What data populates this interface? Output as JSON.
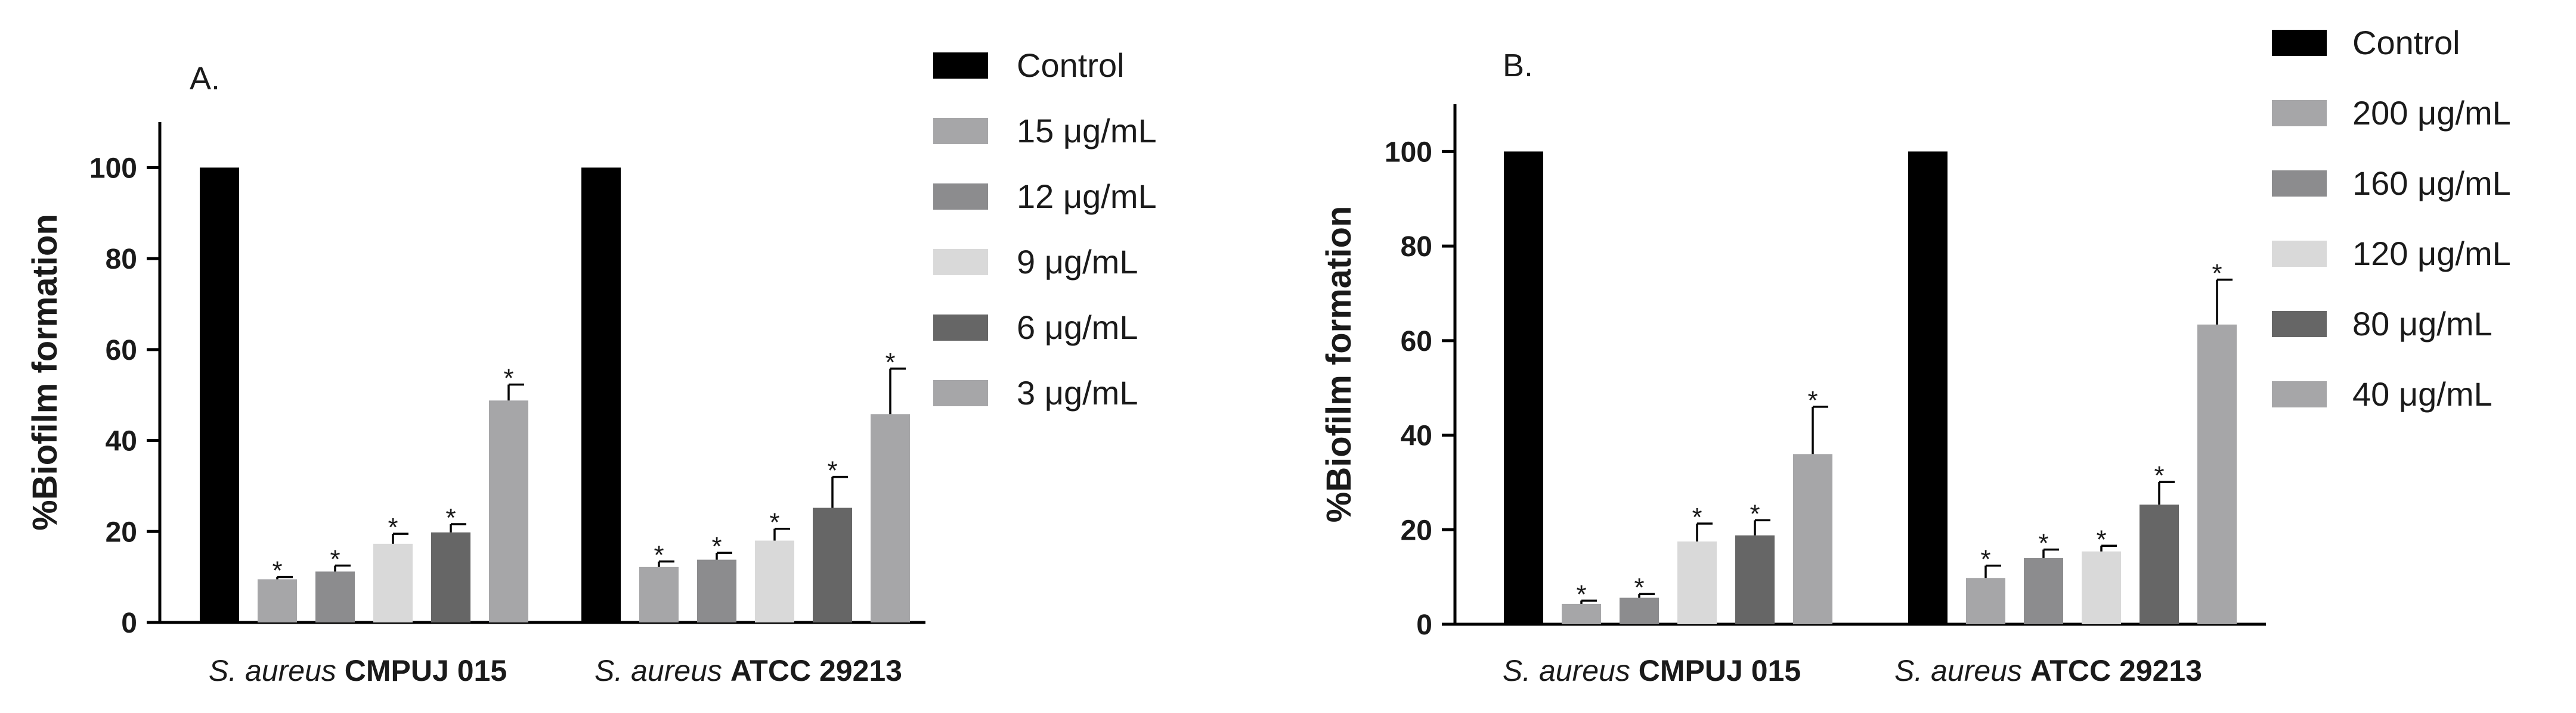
{
  "chart_data": [
    {
      "type": "bar",
      "panel_label": "A.",
      "ylabel": "%Biofilm formation",
      "ylim": [
        0,
        110
      ],
      "yticks": [
        "0",
        "20",
        "40",
        "60",
        "80",
        "100"
      ],
      "groups": [
        {
          "species": "S. aureus",
          "strain": "CMPUJ 015"
        },
        {
          "species": "S. aureus",
          "strain": "ATCC 29213"
        }
      ],
      "significance_marker": "*",
      "legend_position": "right",
      "series": [
        {
          "name": "Control",
          "color": "#000000",
          "values": [
            100,
            100
          ],
          "errors": [
            0,
            0
          ],
          "significant": [
            false,
            false
          ]
        },
        {
          "name": "15 μg/mL",
          "color": "#a6a6a8",
          "values": [
            9.5,
            12.2
          ],
          "errors": [
            0.5,
            1.2
          ],
          "significant": [
            true,
            true
          ]
        },
        {
          "name": "12 μg/mL",
          "color": "#8c8c8e",
          "values": [
            11.2,
            13.8
          ],
          "errors": [
            1.3,
            1.5
          ],
          "significant": [
            true,
            true
          ]
        },
        {
          "name": "9 μg/mL",
          "color": "#d9d9d9",
          "values": [
            17.3,
            18.0
          ],
          "errors": [
            2.2,
            2.6
          ],
          "significant": [
            true,
            true
          ]
        },
        {
          "name": "6 μg/mL",
          "color": "#666666",
          "values": [
            19.8,
            25.2
          ],
          "errors": [
            1.8,
            6.8
          ],
          "significant": [
            true,
            true
          ]
        },
        {
          "name": "3 μg/mL",
          "color": "#a6a6a8",
          "values": [
            48.8,
            45.8
          ],
          "errors": [
            3.5,
            10.0
          ],
          "significant": [
            true,
            true
          ]
        }
      ]
    },
    {
      "type": "bar",
      "panel_label": "B.",
      "ylabel": "%Biofilm formation",
      "ylim": [
        0,
        110
      ],
      "yticks": [
        "0",
        "20",
        "40",
        "60",
        "80",
        "100"
      ],
      "groups": [
        {
          "species": "S. aureus",
          "strain": "CMPUJ 015"
        },
        {
          "species": "S. aureus",
          "strain": "ATCC 29213"
        }
      ],
      "significance_marker": "*",
      "legend_position": "right",
      "series": [
        {
          "name": "Control",
          "color": "#000000",
          "values": [
            100,
            100
          ],
          "errors": [
            0,
            0
          ],
          "significant": [
            false,
            false
          ]
        },
        {
          "name": "200 μg/mL",
          "color": "#a6a6a8",
          "values": [
            4.3,
            9.8
          ],
          "errors": [
            0.7,
            2.6
          ],
          "significant": [
            true,
            true
          ]
        },
        {
          "name": "160 μg/mL",
          "color": "#8c8c8e",
          "values": [
            5.6,
            14.0
          ],
          "errors": [
            0.8,
            1.8
          ],
          "significant": [
            true,
            true
          ]
        },
        {
          "name": "120 μg/mL",
          "color": "#d9d9d9",
          "values": [
            17.5,
            15.4
          ],
          "errors": [
            3.8,
            1.2
          ],
          "significant": [
            true,
            true
          ]
        },
        {
          "name": "80 μg/mL",
          "color": "#666666",
          "values": [
            18.8,
            25.3
          ],
          "errors": [
            3.2,
            4.8
          ],
          "significant": [
            true,
            true
          ]
        },
        {
          "name": "40 μg/mL",
          "color": "#a6a6a8",
          "values": [
            36.0,
            63.4
          ],
          "errors": [
            10.0,
            9.5
          ],
          "significant": [
            true,
            true
          ]
        }
      ]
    }
  ]
}
